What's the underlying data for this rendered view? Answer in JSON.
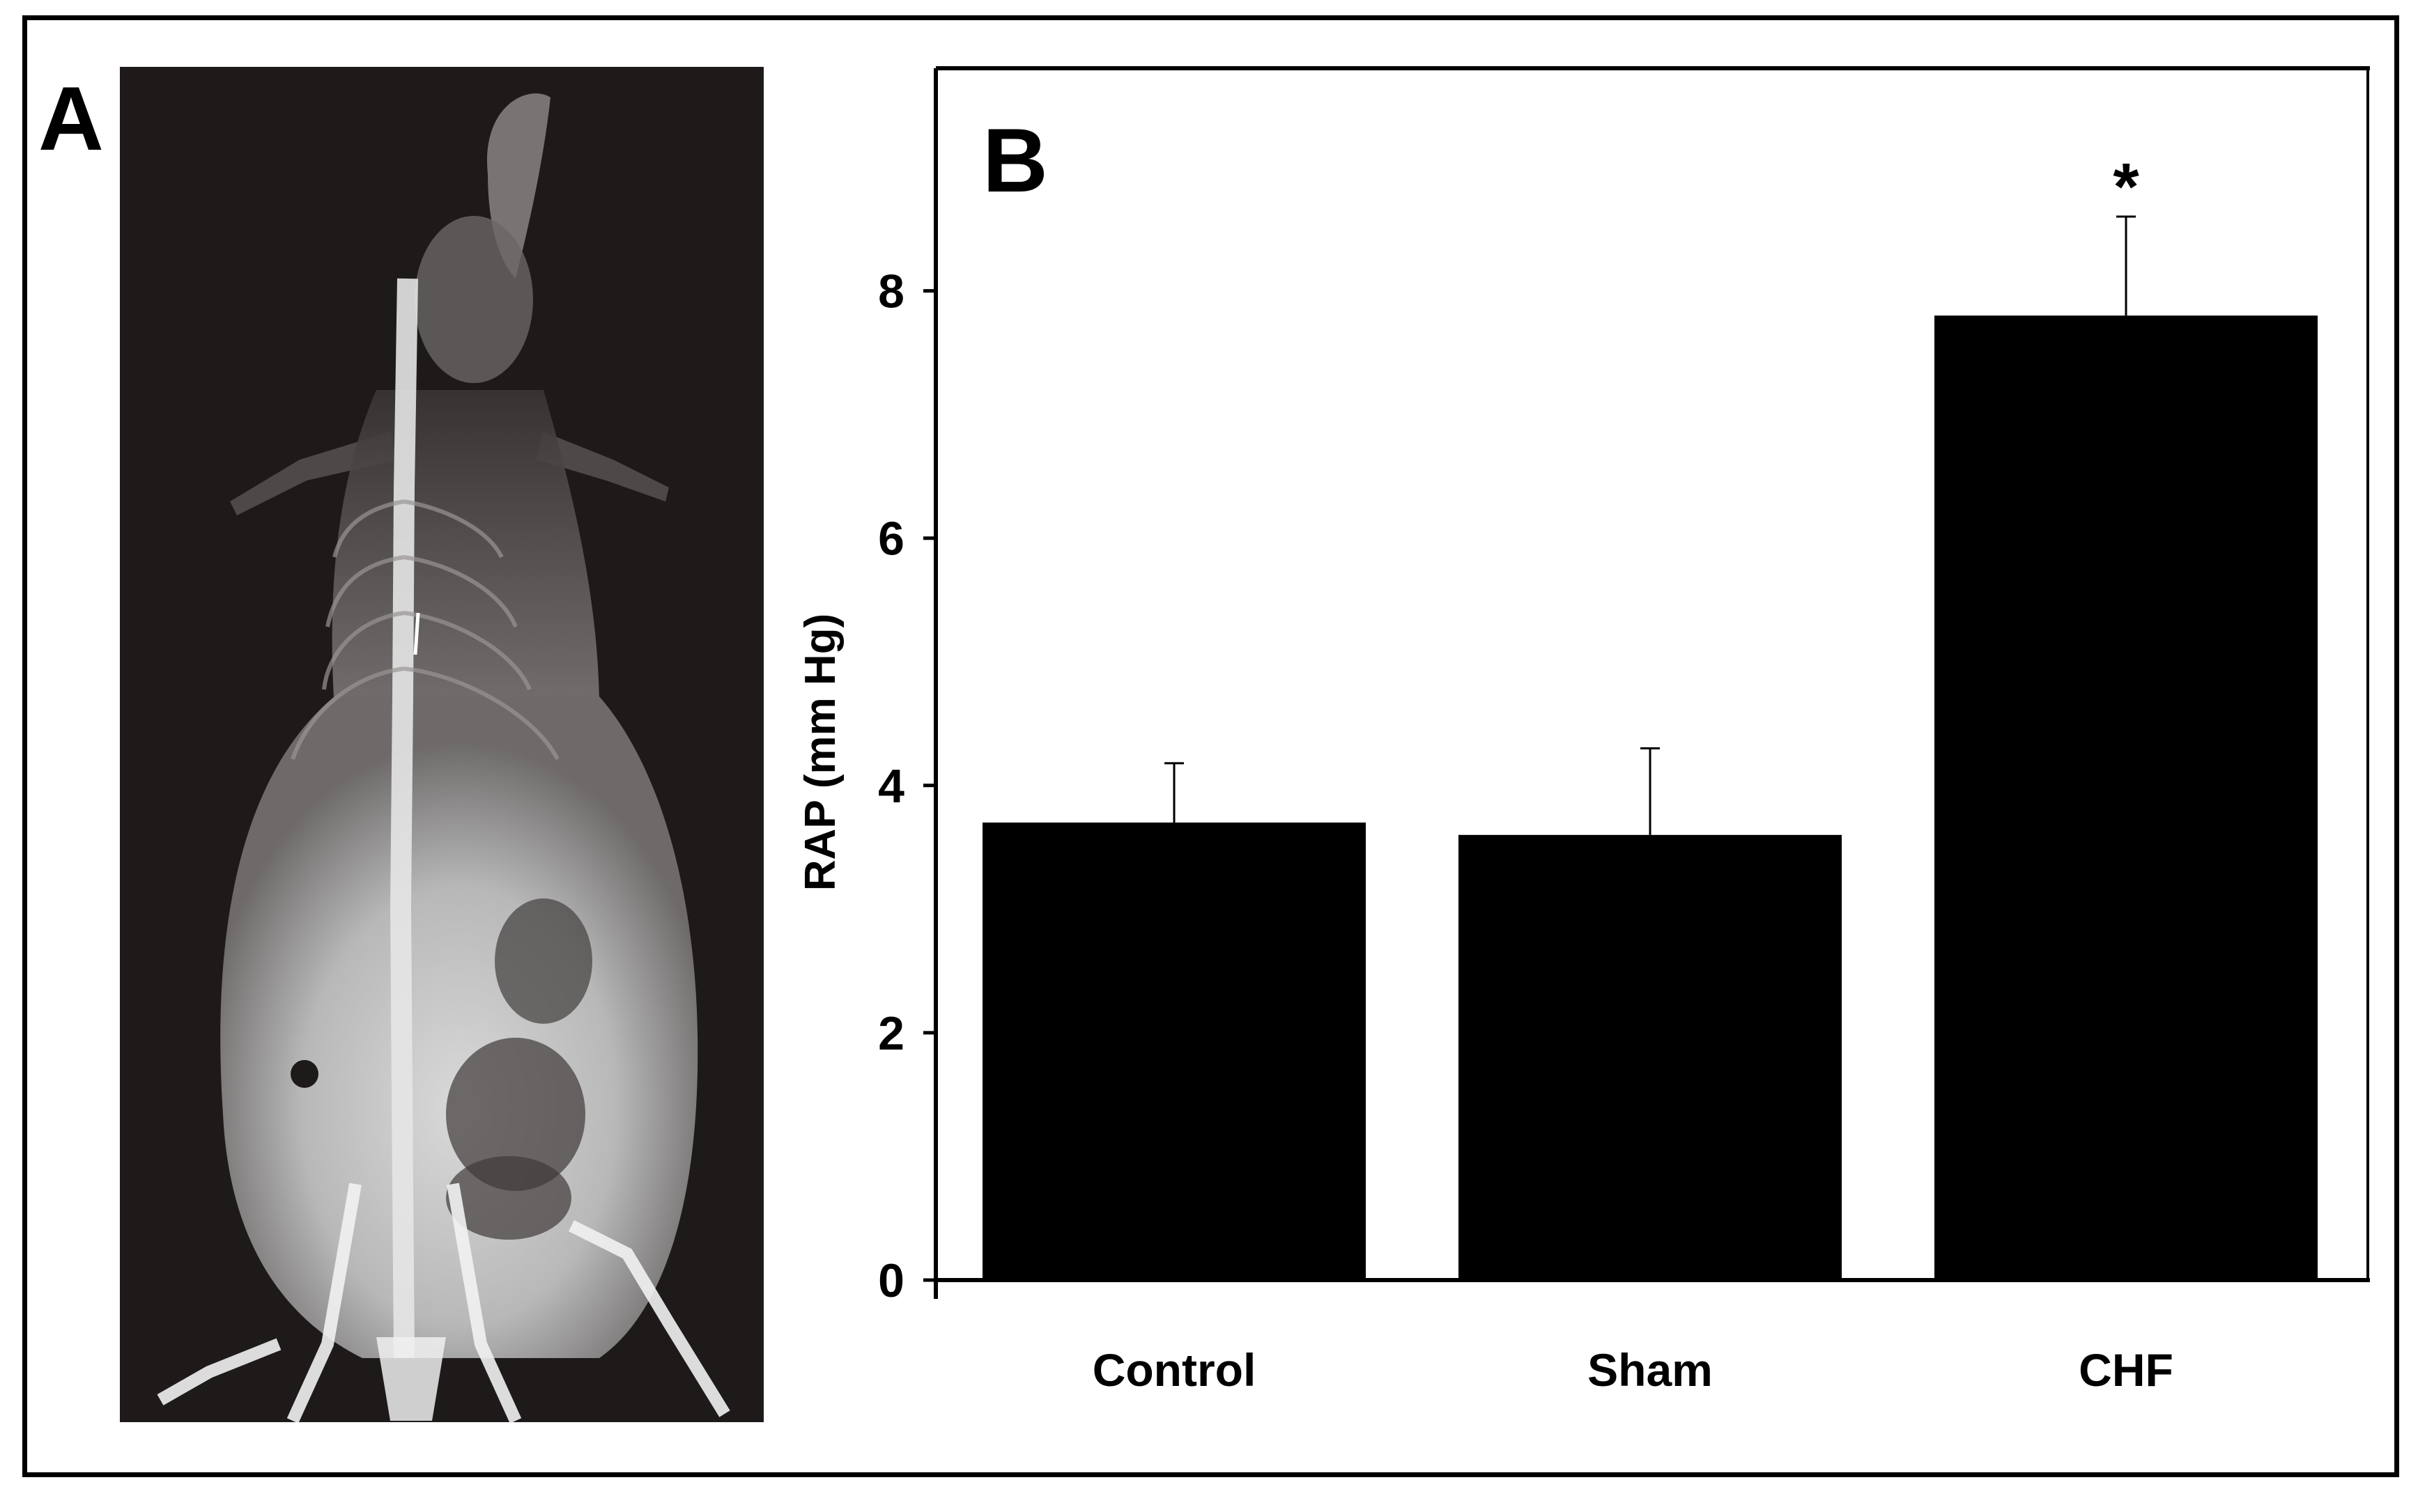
{
  "figure": {
    "panel_a_label": "A",
    "panel_b_label": "B",
    "panel_a_image": "x-ray-radiograph"
  },
  "chart_data": {
    "type": "bar",
    "categories": [
      "Control",
      "Sham",
      "CHF"
    ],
    "values": [
      3.7,
      3.6,
      7.8
    ],
    "errors": [
      0.48,
      0.7,
      0.8
    ],
    "significance": [
      "",
      "",
      "*"
    ],
    "title": "",
    "xlabel": "",
    "ylabel": "RAP (mm Hg)",
    "ylim": [
      0,
      9.8
    ],
    "yticks": [
      0,
      2,
      4,
      6,
      8
    ],
    "grid": false,
    "legend": "none",
    "bar_color": "#000000"
  }
}
